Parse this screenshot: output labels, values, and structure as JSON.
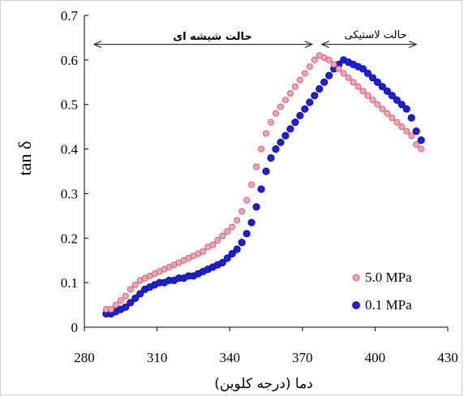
{
  "chart_data": {
    "type": "scatter",
    "ylabel": "tan δ",
    "xlabel": "دما (درجه کلوین)",
    "xlim": [
      280,
      430
    ],
    "ylim": [
      0,
      0.7
    ],
    "x_ticks": [
      "280",
      "310",
      "340",
      "370",
      "400",
      "430"
    ],
    "y_ticks": [
      "0",
      "0.1",
      "0.2",
      "0.3",
      "0.4",
      "0.5",
      "0.6",
      "0.7"
    ],
    "grid": false,
    "legend_position": "bottom-right",
    "annotations": {
      "glassy": {
        "label": "حالت شیشه ای",
        "x_range": [
          284,
          374
        ],
        "y": 0.635
      },
      "rubbery": {
        "label": "حالت لاستیکی",
        "x_range": [
          378,
          417
        ],
        "y": 0.635
      }
    },
    "series": [
      {
        "name": "5.0  MPa",
        "color": "#f4a3b0",
        "edge": "#c0506a",
        "points": [
          [
            289,
            0.04
          ],
          [
            291,
            0.04
          ],
          [
            293,
            0.05
          ],
          [
            295,
            0.06
          ],
          [
            297,
            0.07
          ],
          [
            299,
            0.085
          ],
          [
            301,
            0.095
          ],
          [
            303,
            0.105
          ],
          [
            305,
            0.11
          ],
          [
            307,
            0.115
          ],
          [
            309,
            0.12
          ],
          [
            311,
            0.125
          ],
          [
            313,
            0.13
          ],
          [
            315,
            0.135
          ],
          [
            317,
            0.14
          ],
          [
            319,
            0.145
          ],
          [
            321,
            0.15
          ],
          [
            323,
            0.155
          ],
          [
            325,
            0.16
          ],
          [
            327,
            0.165
          ],
          [
            329,
            0.17
          ],
          [
            331,
            0.18
          ],
          [
            333,
            0.185
          ],
          [
            335,
            0.195
          ],
          [
            337,
            0.205
          ],
          [
            339,
            0.215
          ],
          [
            341,
            0.225
          ],
          [
            343,
            0.24
          ],
          [
            345,
            0.26
          ],
          [
            347,
            0.285
          ],
          [
            349,
            0.32
          ],
          [
            351,
            0.36
          ],
          [
            353,
            0.4
          ],
          [
            355,
            0.435
          ],
          [
            357,
            0.46
          ],
          [
            359,
            0.48
          ],
          [
            361,
            0.495
          ],
          [
            363,
            0.51
          ],
          [
            365,
            0.525
          ],
          [
            367,
            0.54
          ],
          [
            369,
            0.555
          ],
          [
            371,
            0.57
          ],
          [
            373,
            0.585
          ],
          [
            375,
            0.6
          ],
          [
            377,
            0.61
          ],
          [
            379,
            0.605
          ],
          [
            381,
            0.6
          ],
          [
            383,
            0.59
          ],
          [
            385,
            0.58
          ],
          [
            387,
            0.57
          ],
          [
            389,
            0.56
          ],
          [
            391,
            0.55
          ],
          [
            393,
            0.54
          ],
          [
            395,
            0.53
          ],
          [
            397,
            0.52
          ],
          [
            399,
            0.51
          ],
          [
            401,
            0.5
          ],
          [
            403,
            0.49
          ],
          [
            405,
            0.48
          ],
          [
            407,
            0.47
          ],
          [
            409,
            0.46
          ],
          [
            411,
            0.45
          ],
          [
            413,
            0.44
          ],
          [
            415,
            0.43
          ],
          [
            417,
            0.41
          ],
          [
            419,
            0.4
          ]
        ]
      },
      {
        "name": "0.1 MPa",
        "color": "#1f1fd6",
        "edge": "#0b0b8f",
        "points": [
          [
            289,
            0.03
          ],
          [
            291,
            0.03
          ],
          [
            293,
            0.035
          ],
          [
            295,
            0.04
          ],
          [
            297,
            0.045
          ],
          [
            299,
            0.055
          ],
          [
            301,
            0.065
          ],
          [
            303,
            0.075
          ],
          [
            305,
            0.085
          ],
          [
            307,
            0.09
          ],
          [
            309,
            0.095
          ],
          [
            311,
            0.1
          ],
          [
            313,
            0.1
          ],
          [
            315,
            0.105
          ],
          [
            317,
            0.105
          ],
          [
            319,
            0.11
          ],
          [
            321,
            0.11
          ],
          [
            323,
            0.115
          ],
          [
            325,
            0.115
          ],
          [
            327,
            0.12
          ],
          [
            329,
            0.125
          ],
          [
            331,
            0.13
          ],
          [
            333,
            0.135
          ],
          [
            335,
            0.14
          ],
          [
            337,
            0.145
          ],
          [
            339,
            0.155
          ],
          [
            341,
            0.165
          ],
          [
            343,
            0.175
          ],
          [
            345,
            0.19
          ],
          [
            347,
            0.21
          ],
          [
            349,
            0.235
          ],
          [
            351,
            0.27
          ],
          [
            353,
            0.31
          ],
          [
            355,
            0.35
          ],
          [
            357,
            0.38
          ],
          [
            359,
            0.4
          ],
          [
            361,
            0.415
          ],
          [
            363,
            0.43
          ],
          [
            365,
            0.445
          ],
          [
            367,
            0.46
          ],
          [
            369,
            0.475
          ],
          [
            371,
            0.49
          ],
          [
            373,
            0.505
          ],
          [
            375,
            0.52
          ],
          [
            377,
            0.535
          ],
          [
            379,
            0.55
          ],
          [
            381,
            0.565
          ],
          [
            383,
            0.58
          ],
          [
            385,
            0.59
          ],
          [
            387,
            0.6
          ],
          [
            389,
            0.595
          ],
          [
            391,
            0.59
          ],
          [
            393,
            0.585
          ],
          [
            395,
            0.58
          ],
          [
            397,
            0.57
          ],
          [
            399,
            0.56
          ],
          [
            401,
            0.55
          ],
          [
            403,
            0.54
          ],
          [
            405,
            0.53
          ],
          [
            407,
            0.52
          ],
          [
            409,
            0.51
          ],
          [
            411,
            0.5
          ],
          [
            413,
            0.49
          ],
          [
            415,
            0.47
          ],
          [
            417,
            0.44
          ],
          [
            419,
            0.42
          ]
        ]
      }
    ]
  }
}
